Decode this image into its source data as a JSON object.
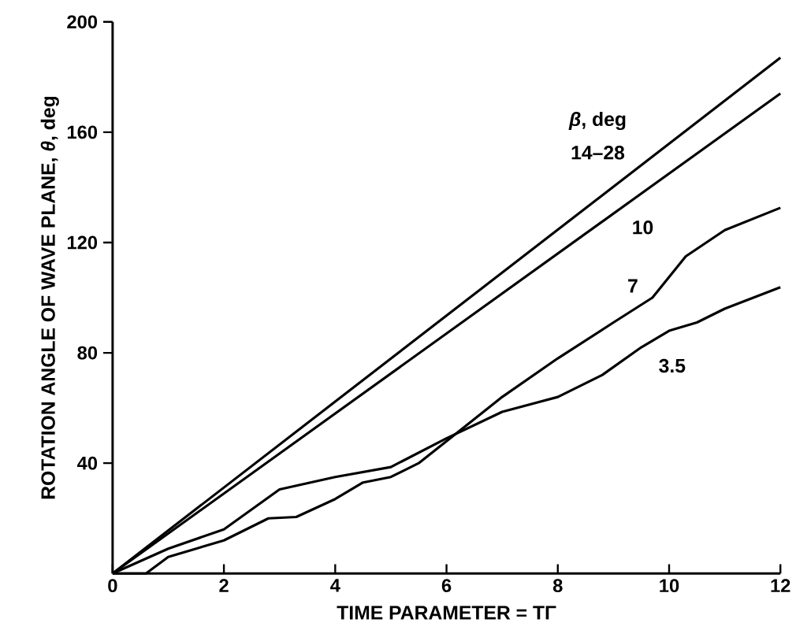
{
  "chart_data": {
    "type": "line",
    "xlabel": "TIME PARAMETER = TΓ",
    "ylabel": "ROTATION ANGLE OF WAVE PLANE, *θ*, deg",
    "legend_title": "*β*, deg",
    "xlim": [
      0,
      12
    ],
    "ylim": [
      0,
      200
    ],
    "xticks": [
      0,
      2,
      4,
      6,
      8,
      10,
      12
    ],
    "yticks": [
      40,
      80,
      120,
      160,
      200
    ],
    "marker": "none",
    "line_style": "solid",
    "series": [
      {
        "name": "14–28",
        "color": "#000000",
        "x": [
          0,
          12
        ],
        "values": [
          0,
          187
        ]
      },
      {
        "name": "10",
        "color": "#000000",
        "x": [
          0,
          12
        ],
        "values": [
          0,
          174
        ]
      },
      {
        "name": "7",
        "color": "#000000",
        "x": [
          0,
          0.6,
          1,
          2,
          2.8,
          3.3,
          4,
          4.5,
          5,
          5.5,
          6,
          7,
          8,
          9,
          9.7,
          10.3,
          11,
          12
        ],
        "values": [
          0,
          0,
          6,
          12,
          20,
          20.5,
          27,
          33,
          35,
          40,
          48,
          64,
          78,
          91,
          100,
          115,
          124.5,
          132.6
        ]
      },
      {
        "name": "3.5",
        "color": "#000000",
        "x": [
          0,
          1,
          2,
          3,
          4,
          5,
          6,
          7,
          8,
          8.8,
          9.5,
          10,
          10.5,
          11,
          12
        ],
        "values": [
          0,
          9,
          16,
          30.5,
          35,
          38.6,
          49,
          58.6,
          64,
          72,
          82,
          88,
          91,
          96,
          103.8
        ]
      }
    ]
  }
}
